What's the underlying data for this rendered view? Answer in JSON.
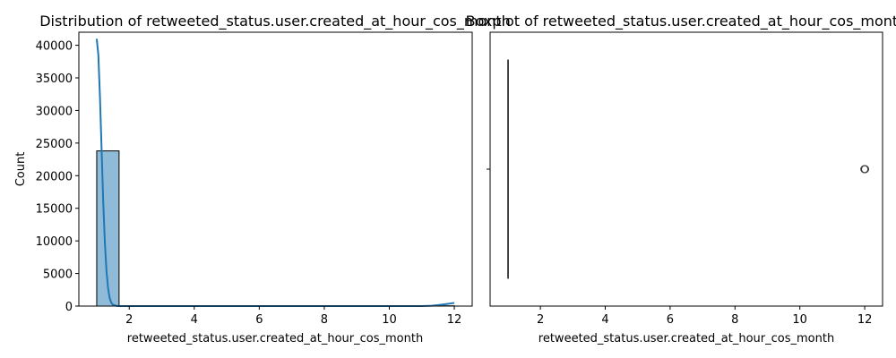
{
  "chart_data": [
    {
      "type": "histogram",
      "title": "Distribution of retweeted_status.user.created_at_hour_cos_month",
      "xlabel": "retweeted_status.user.created_at_hour_cos_month",
      "ylabel": "Count",
      "xlim": [
        0.45,
        12.55
      ],
      "ylim": [
        0,
        42000
      ],
      "xticks": [
        2,
        4,
        6,
        8,
        10,
        12
      ],
      "yticks": [
        0,
        5000,
        10000,
        15000,
        20000,
        25000,
        30000,
        35000,
        40000
      ],
      "bar_color": "#1f77b4",
      "bins": [
        {
          "x0": 1.0,
          "x1": 1.6875,
          "count": 23800
        },
        {
          "x0": 1.6875,
          "x1": 2.375,
          "count": 0
        },
        {
          "x0": 2.375,
          "x1": 3.0625,
          "count": 0
        },
        {
          "x0": 3.0625,
          "x1": 3.75,
          "count": 0
        },
        {
          "x0": 3.75,
          "x1": 4.4375,
          "count": 0
        },
        {
          "x0": 4.4375,
          "x1": 5.125,
          "count": 0
        },
        {
          "x0": 5.125,
          "x1": 5.8125,
          "count": 0
        },
        {
          "x0": 5.8125,
          "x1": 6.5,
          "count": 0
        },
        {
          "x0": 6.5,
          "x1": 7.1875,
          "count": 0
        },
        {
          "x0": 7.1875,
          "x1": 7.875,
          "count": 0
        },
        {
          "x0": 7.875,
          "x1": 8.5625,
          "count": 0
        },
        {
          "x0": 8.5625,
          "x1": 9.25,
          "count": 0
        },
        {
          "x0": 9.25,
          "x1": 9.9375,
          "count": 0
        },
        {
          "x0": 9.9375,
          "x1": 10.625,
          "count": 0
        },
        {
          "x0": 10.625,
          "x1": 11.3125,
          "count": 0
        },
        {
          "x0": 11.3125,
          "x1": 12.0,
          "count": 40
        }
      ],
      "kde": {
        "x": [
          1.0,
          1.05,
          1.1,
          1.15,
          1.2,
          1.25,
          1.3,
          1.35,
          1.4,
          1.45,
          1.5,
          1.6,
          1.7,
          1.8,
          2.0,
          3.0,
          6.0,
          9.0,
          11.0,
          11.3,
          11.5,
          11.7,
          11.8,
          11.9,
          12.0
        ],
        "y": [
          41000,
          38500,
          32000,
          24000,
          16000,
          9800,
          5400,
          2700,
          1200,
          500,
          200,
          40,
          5,
          0,
          0,
          0,
          0,
          0,
          0,
          50,
          150,
          280,
          350,
          420,
          480
        ]
      }
    },
    {
      "type": "boxplot",
      "title": "Boxplot of retweeted_status.user.created_at_hour_cos_month",
      "xlabel": "retweeted_status.user.created_at_hour_cos_month",
      "xlim": [
        0.45,
        12.55
      ],
      "xticks": [
        2,
        4,
        6,
        8,
        10,
        12
      ],
      "box": {
        "q1": 1,
        "median": 1,
        "q3": 1,
        "whisker_low": 1,
        "whisker_high": 1
      },
      "outliers": [
        12,
        12,
        12,
        12
      ],
      "fill_color": "#1f77b4"
    }
  ]
}
